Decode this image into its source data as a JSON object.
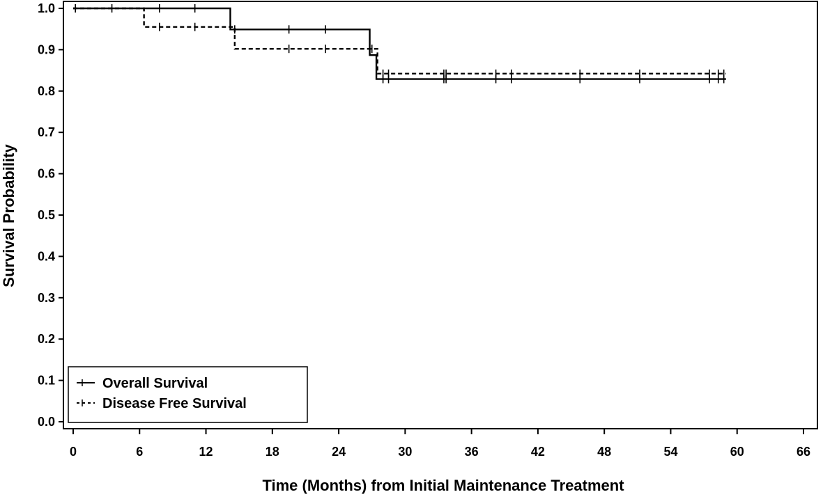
{
  "chart_data": {
    "type": "line",
    "subtype": "kaplan-meier-step",
    "title": "",
    "xlabel": "Time (Months) from Initial Maintenance Treatment",
    "ylabel": "Survival Probability",
    "xlim": [
      0,
      66
    ],
    "ylim": [
      0,
      1.0
    ],
    "x_ticks": [
      0,
      6,
      12,
      18,
      24,
      30,
      36,
      42,
      48,
      54,
      60,
      66
    ],
    "y_ticks": [
      0.0,
      0.1,
      0.2,
      0.3,
      0.4,
      0.5,
      0.6,
      0.7,
      0.8,
      0.9,
      1.0
    ],
    "y_tick_labels": [
      "0.0",
      "0.1",
      "0.2",
      "0.3",
      "0.4",
      "0.5",
      "0.6",
      "0.7",
      "0.8",
      "0.9",
      "1.0"
    ],
    "grid": false,
    "legend_position": "bottom-left",
    "series": [
      {
        "name": "Overall Survival",
        "line_style": "solid",
        "color": "#000000",
        "steps": [
          {
            "x": 0,
            "y": 1.0
          },
          {
            "x": 14.2,
            "y": 0.949
          },
          {
            "x": 26.8,
            "y": 0.887
          },
          {
            "x": 27.4,
            "y": 0.829
          }
        ],
        "end_x": 59.0,
        "censored": [
          {
            "x": 0.2,
            "y": 1.0
          },
          {
            "x": 3.5,
            "y": 1.0
          },
          {
            "x": 7.8,
            "y": 1.0
          },
          {
            "x": 11.0,
            "y": 1.0
          },
          {
            "x": 14.6,
            "y": 0.949
          },
          {
            "x": 19.5,
            "y": 0.949
          },
          {
            "x": 22.8,
            "y": 0.949
          },
          {
            "x": 28.0,
            "y": 0.829
          },
          {
            "x": 28.5,
            "y": 0.829
          },
          {
            "x": 33.5,
            "y": 0.829
          },
          {
            "x": 33.7,
            "y": 0.829
          },
          {
            "x": 38.2,
            "y": 0.829
          },
          {
            "x": 39.6,
            "y": 0.829
          },
          {
            "x": 45.8,
            "y": 0.829
          },
          {
            "x": 51.2,
            "y": 0.829
          },
          {
            "x": 57.5,
            "y": 0.829
          },
          {
            "x": 58.3,
            "y": 0.829
          },
          {
            "x": 58.8,
            "y": 0.829
          }
        ]
      },
      {
        "name": "Disease Free Survival",
        "line_style": "dashed",
        "color": "#000000",
        "steps": [
          {
            "x": 0,
            "y": 1.0
          },
          {
            "x": 6.4,
            "y": 0.955
          },
          {
            "x": 14.6,
            "y": 0.902
          },
          {
            "x": 27.5,
            "y": 0.842
          }
        ],
        "end_x": 59.0,
        "censored": [
          {
            "x": 7.8,
            "y": 0.955
          },
          {
            "x": 11.0,
            "y": 0.955
          },
          {
            "x": 19.5,
            "y": 0.902
          },
          {
            "x": 22.8,
            "y": 0.902
          },
          {
            "x": 27.0,
            "y": 0.902
          },
          {
            "x": 28.0,
            "y": 0.842
          },
          {
            "x": 28.5,
            "y": 0.842
          },
          {
            "x": 33.5,
            "y": 0.842
          },
          {
            "x": 33.7,
            "y": 0.842
          },
          {
            "x": 38.2,
            "y": 0.842
          },
          {
            "x": 39.6,
            "y": 0.842
          },
          {
            "x": 45.8,
            "y": 0.842
          },
          {
            "x": 51.2,
            "y": 0.842
          },
          {
            "x": 57.5,
            "y": 0.842
          },
          {
            "x": 58.3,
            "y": 0.842
          },
          {
            "x": 58.8,
            "y": 0.842
          }
        ]
      }
    ]
  }
}
